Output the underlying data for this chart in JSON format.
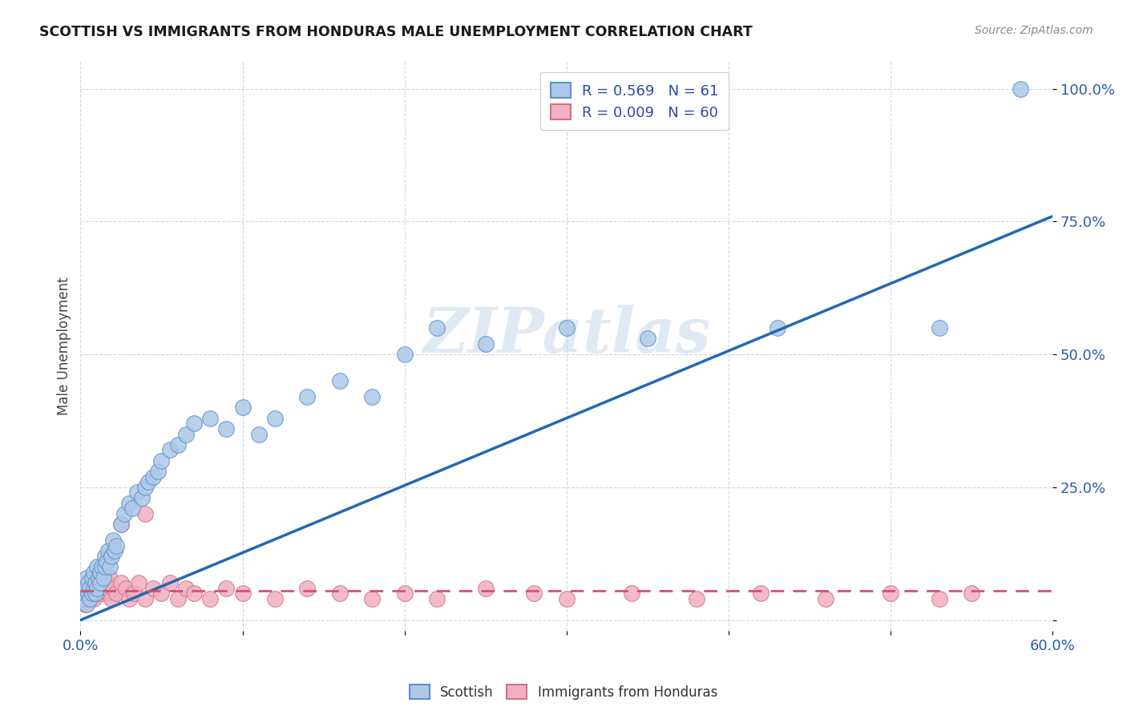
{
  "title": "SCOTTISH VS IMMIGRANTS FROM HONDURAS MALE UNEMPLOYMENT CORRELATION CHART",
  "source": "Source: ZipAtlas.com",
  "ylabel": "Male Unemployment",
  "xlim": [
    0.0,
    0.6
  ],
  "ylim": [
    -0.02,
    1.05
  ],
  "xticks": [
    0.0,
    0.1,
    0.2,
    0.3,
    0.4,
    0.5,
    0.6
  ],
  "xticklabels": [
    "0.0%",
    "",
    "",
    "",
    "",
    "",
    "60.0%"
  ],
  "yticks": [
    0.0,
    0.25,
    0.5,
    0.75,
    1.0
  ],
  "yticklabels": [
    "",
    "25.0%",
    "50.0%",
    "75.0%",
    "100.0%"
  ],
  "scottish_R": 0.569,
  "scottish_N": 61,
  "honduras_R": 0.009,
  "honduras_N": 60,
  "scottish_color": "#adc8e8",
  "honduras_color": "#f2afc0",
  "trend_scottish_color": "#2268b2",
  "trend_honduras_color": "#d94f70",
  "scottish_trend_solid": true,
  "honduras_trend_dashed": true,
  "legend_scottish_label": "Scottish",
  "legend_honduras_label": "Immigrants from Honduras",
  "watermark": "ZIPatlas",
  "scottish_x": [
    0.002,
    0.003,
    0.004,
    0.004,
    0.005,
    0.005,
    0.006,
    0.006,
    0.007,
    0.007,
    0.008,
    0.008,
    0.009,
    0.009,
    0.01,
    0.01,
    0.011,
    0.012,
    0.012,
    0.013,
    0.014,
    0.015,
    0.015,
    0.016,
    0.017,
    0.018,
    0.019,
    0.02,
    0.021,
    0.022,
    0.025,
    0.027,
    0.03,
    0.032,
    0.035,
    0.038,
    0.04,
    0.042,
    0.045,
    0.048,
    0.05,
    0.055,
    0.06,
    0.065,
    0.07,
    0.08,
    0.09,
    0.1,
    0.11,
    0.12,
    0.14,
    0.16,
    0.18,
    0.2,
    0.22,
    0.25,
    0.3,
    0.35,
    0.43,
    0.53,
    0.58
  ],
  "scottish_y": [
    0.04,
    0.06,
    0.03,
    0.08,
    0.05,
    0.07,
    0.04,
    0.06,
    0.05,
    0.08,
    0.06,
    0.09,
    0.05,
    0.07,
    0.06,
    0.1,
    0.08,
    0.07,
    0.09,
    0.1,
    0.08,
    0.12,
    0.1,
    0.11,
    0.13,
    0.1,
    0.12,
    0.15,
    0.13,
    0.14,
    0.18,
    0.2,
    0.22,
    0.21,
    0.24,
    0.23,
    0.25,
    0.26,
    0.27,
    0.28,
    0.3,
    0.32,
    0.33,
    0.35,
    0.37,
    0.38,
    0.36,
    0.4,
    0.35,
    0.38,
    0.42,
    0.45,
    0.42,
    0.5,
    0.55,
    0.52,
    0.55,
    0.53,
    0.55,
    0.55,
    1.0
  ],
  "honduras_x": [
    0.002,
    0.003,
    0.003,
    0.004,
    0.004,
    0.005,
    0.005,
    0.006,
    0.006,
    0.007,
    0.007,
    0.008,
    0.008,
    0.009,
    0.01,
    0.01,
    0.011,
    0.012,
    0.013,
    0.014,
    0.015,
    0.016,
    0.017,
    0.018,
    0.019,
    0.02,
    0.022,
    0.025,
    0.028,
    0.03,
    0.033,
    0.036,
    0.04,
    0.045,
    0.05,
    0.055,
    0.06,
    0.065,
    0.07,
    0.08,
    0.09,
    0.1,
    0.12,
    0.14,
    0.16,
    0.18,
    0.2,
    0.22,
    0.25,
    0.28,
    0.3,
    0.34,
    0.38,
    0.42,
    0.46,
    0.5,
    0.53,
    0.55,
    0.04,
    0.025
  ],
  "honduras_y": [
    0.04,
    0.05,
    0.03,
    0.06,
    0.04,
    0.05,
    0.07,
    0.04,
    0.06,
    0.05,
    0.08,
    0.04,
    0.06,
    0.07,
    0.05,
    0.08,
    0.06,
    0.07,
    0.05,
    0.08,
    0.06,
    0.07,
    0.05,
    0.08,
    0.04,
    0.06,
    0.05,
    0.07,
    0.06,
    0.04,
    0.05,
    0.07,
    0.04,
    0.06,
    0.05,
    0.07,
    0.04,
    0.06,
    0.05,
    0.04,
    0.06,
    0.05,
    0.04,
    0.06,
    0.05,
    0.04,
    0.05,
    0.04,
    0.06,
    0.05,
    0.04,
    0.05,
    0.04,
    0.05,
    0.04,
    0.05,
    0.04,
    0.05,
    0.2,
    0.18
  ],
  "scottish_trend_x": [
    0.0,
    0.6
  ],
  "scottish_trend_y": [
    0.0,
    0.76
  ],
  "honduras_trend_x": [
    0.0,
    0.6
  ],
  "honduras_trend_y": [
    0.055,
    0.055
  ]
}
